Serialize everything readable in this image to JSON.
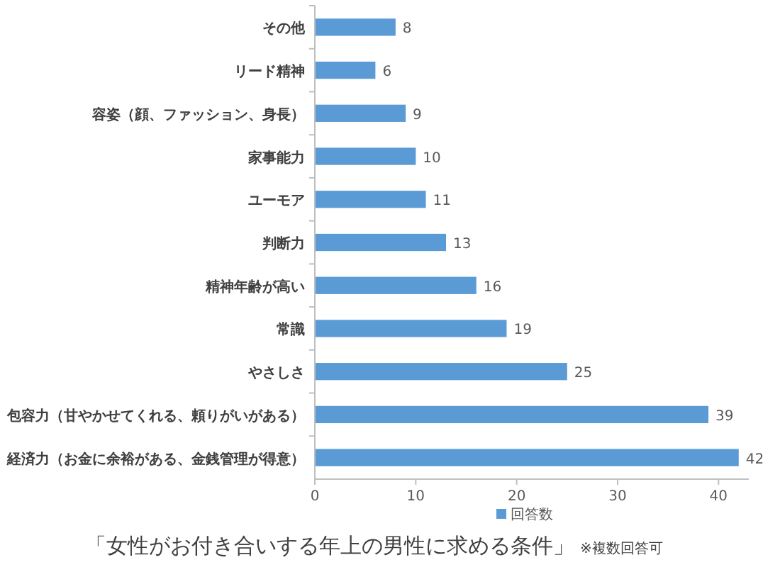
{
  "chart_data": {
    "type": "bar",
    "orientation": "horizontal",
    "title": "「女性がお付き合いする年上の男性に求める条件」",
    "annotations": [
      "※複数回答可"
    ],
    "categories": [
      "その他",
      "リード精神",
      "容姿（顔、ファッション、身長）",
      "家事能力",
      "ユーモア",
      "判断力",
      "精神年齢が高い",
      "常識",
      "やさしさ",
      "包容力（甘やかせてくれる、頼りがいがある）",
      "経済力（お金に余裕がある、金銭管理が得意）"
    ],
    "series": [
      {
        "name": "回答数",
        "color": "#5b9bd5",
        "values": [
          8,
          6,
          9,
          10,
          11,
          13,
          16,
          19,
          25,
          39,
          42
        ]
      }
    ],
    "xlim": [
      0,
      43
    ],
    "xticks": [
      0,
      10,
      20,
      30,
      40
    ],
    "data_labels": true,
    "legend": "bottom",
    "grid": false
  }
}
